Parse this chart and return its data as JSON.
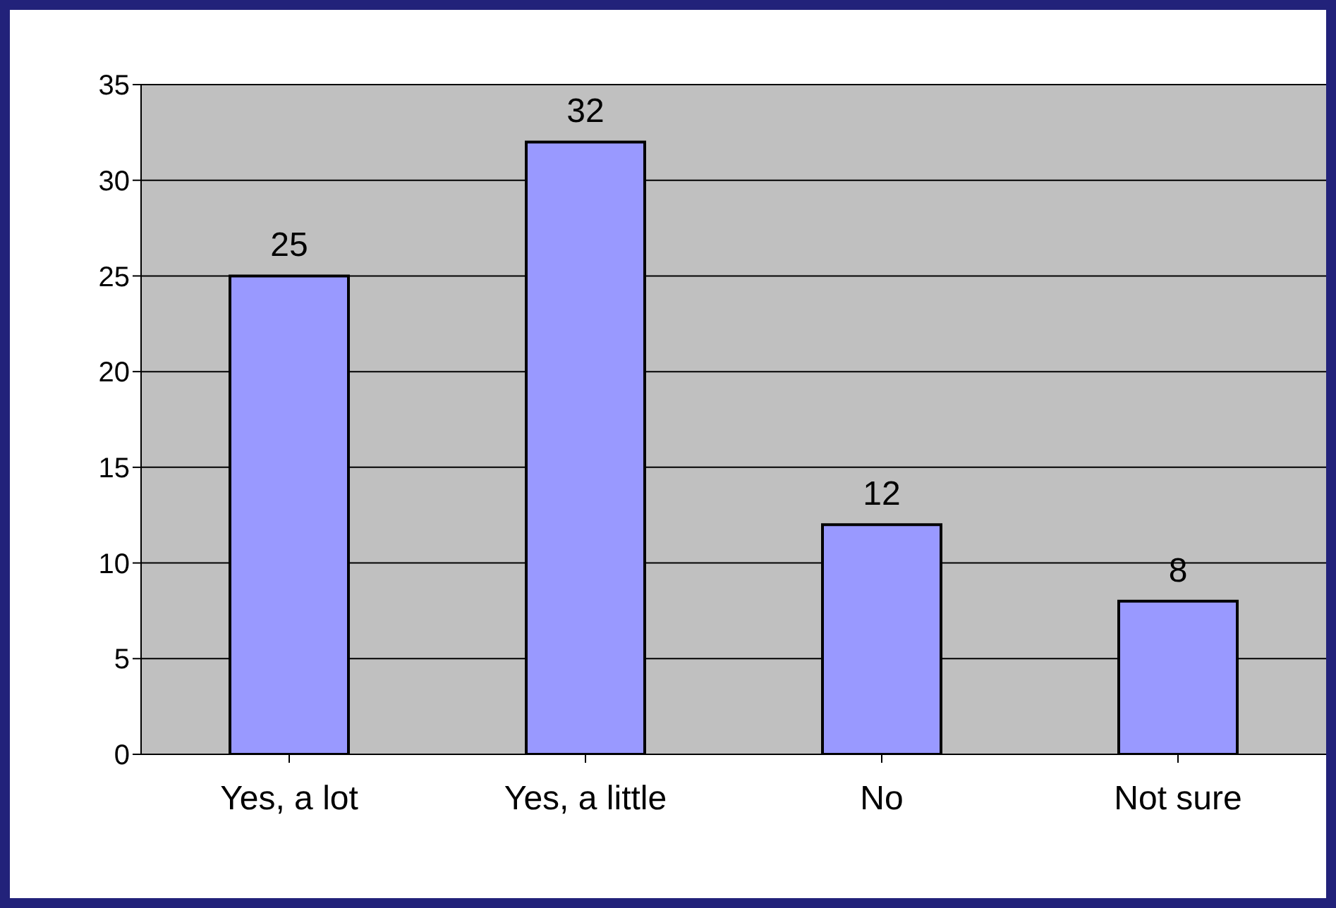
{
  "chart_data": {
    "type": "bar",
    "categories": [
      "Yes, a lot",
      "Yes, a little",
      "No",
      "Not sure"
    ],
    "values": [
      25,
      32,
      12,
      8
    ],
    "color": "#9999ff",
    "ylim": [
      0,
      35
    ],
    "yticks": [
      0,
      5,
      10,
      15,
      20,
      25,
      30,
      35
    ],
    "grid": "y",
    "data_labels": true
  }
}
